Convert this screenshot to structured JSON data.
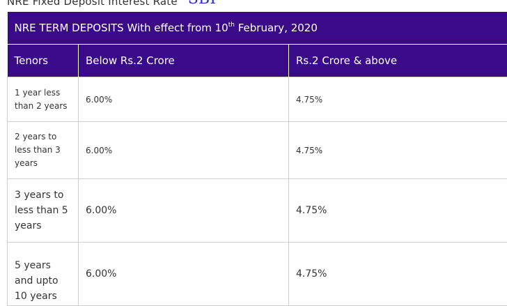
{
  "page_heading": {
    "text": "NRE Fixed Deposit Interest Rate",
    "brand": "SBI"
  },
  "table": {
    "title_prefix": "NRE TERM DEPOSITS With effect from 10",
    "title_sup": "th",
    "title_suffix": " February, 2020",
    "headers": [
      "Tenors",
      "Below Rs.2 Crore",
      "Rs.2 Crore & above"
    ],
    "rows": [
      {
        "tenor": "1 year less than 2 years",
        "below_2cr": "6.00%",
        "above_2cr": "4.75%"
      },
      {
        "tenor": "2 years to less than 3 years",
        "below_2cr": "6.00%",
        "above_2cr": "4.75%"
      },
      {
        "tenor": "3 years to less than 5 years",
        "below_2cr": "6.00%",
        "above_2cr": "4.75%"
      },
      {
        "tenor": "5 years and upto 10 years",
        "below_2cr": "6.00%",
        "above_2cr": "4.75%"
      }
    ]
  },
  "colors": {
    "header_bg": "#3a0b89",
    "brand": "#2c2fc9",
    "border": "#cfcfcf"
  }
}
